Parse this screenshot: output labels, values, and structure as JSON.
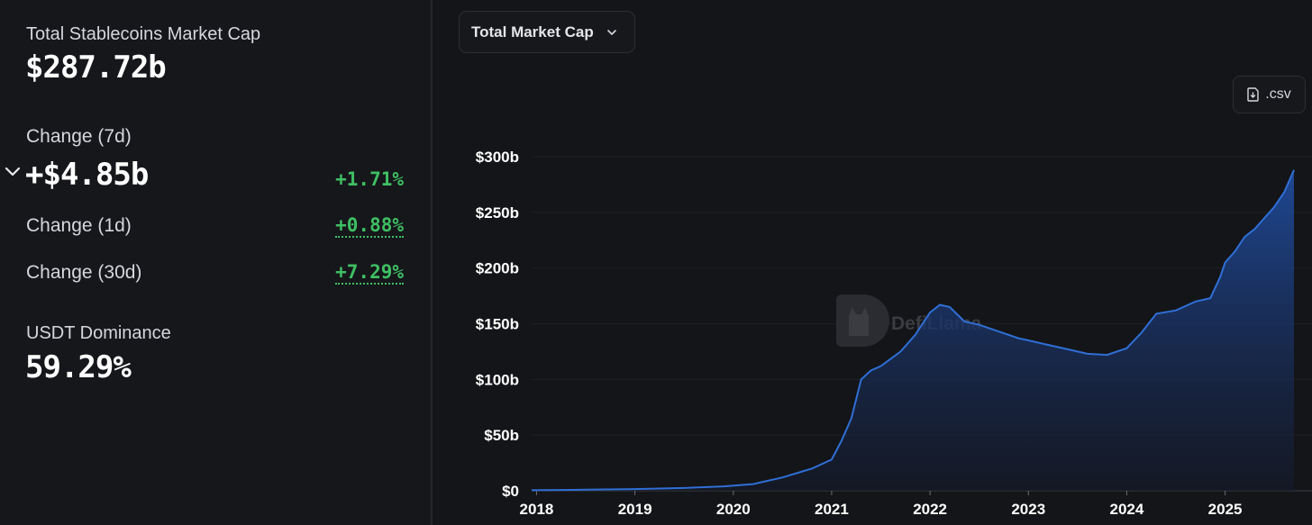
{
  "summary": {
    "market_cap_label": "Total Stablecoins Market Cap",
    "market_cap_value": "$287.72b",
    "change7d_label": "Change (7d)",
    "change7d_value": "+$4.85b",
    "change7d_pct": "+1.71%",
    "change1d_label": "Change (1d)",
    "change1d_pct": "+0.88%",
    "change30d_label": "Change (30d)",
    "change30d_pct": "+7.29%",
    "dominance_label": "USDT Dominance",
    "dominance_value": "59.29%"
  },
  "controls": {
    "selector_label": "Total Market Cap",
    "csv_label": ".csv"
  },
  "watermark": "DefiLlama",
  "colors": {
    "positive": "#3fbf63",
    "line": "#2f6fd6",
    "fill_top": "#1f4a9a"
  },
  "icons": {
    "expand": "chevron-down-icon",
    "selector": "chevron-down-icon",
    "csv": "download-file-icon",
    "watermark": "llama-logo-icon"
  },
  "chart_data": {
    "type": "area",
    "title": "",
    "xlabel": "",
    "ylabel": "",
    "ylim": [
      0,
      300
    ],
    "y_ticks": [
      0,
      50,
      100,
      150,
      200,
      250,
      300
    ],
    "y_tick_labels": [
      "$0",
      "$50b",
      "$100b",
      "$150b",
      "$200b",
      "$250b",
      "$300b"
    ],
    "xlim": [
      2017.95,
      2025.7
    ],
    "x_ticks": [
      2018,
      2019,
      2020,
      2021,
      2022,
      2023,
      2024,
      2025
    ],
    "x_tick_labels": [
      "2018",
      "2019",
      "2020",
      "2021",
      "2022",
      "2023",
      "2024",
      "2025"
    ],
    "grid": "horizontal",
    "series": [
      {
        "x": [
          2017.95,
          2018.5,
          2019.0,
          2019.5,
          2019.9,
          2020.2,
          2020.5,
          2020.8,
          2021.0,
          2021.1,
          2021.2,
          2021.3,
          2021.4,
          2021.5,
          2021.7,
          2021.85,
          2022.0,
          2022.1,
          2022.2,
          2022.35,
          2022.5,
          2022.7,
          2022.9,
          2023.0,
          2023.2,
          2023.4,
          2023.6,
          2023.8,
          2024.0,
          2024.15,
          2024.3,
          2024.5,
          2024.7,
          2024.85,
          2024.95,
          2025.0,
          2025.1,
          2025.2,
          2025.3,
          2025.4,
          2025.5,
          2025.6,
          2025.7
        ],
        "y": [
          0.5,
          1,
          1.5,
          2.5,
          4,
          6,
          12,
          20,
          28,
          45,
          65,
          100,
          108,
          112,
          125,
          140,
          160,
          167,
          165,
          152,
          149,
          143,
          137,
          135,
          131,
          127,
          123,
          122,
          128,
          142,
          159,
          162,
          170,
          173,
          192,
          205,
          215,
          228,
          235,
          245,
          255,
          268,
          288
        ]
      }
    ]
  }
}
